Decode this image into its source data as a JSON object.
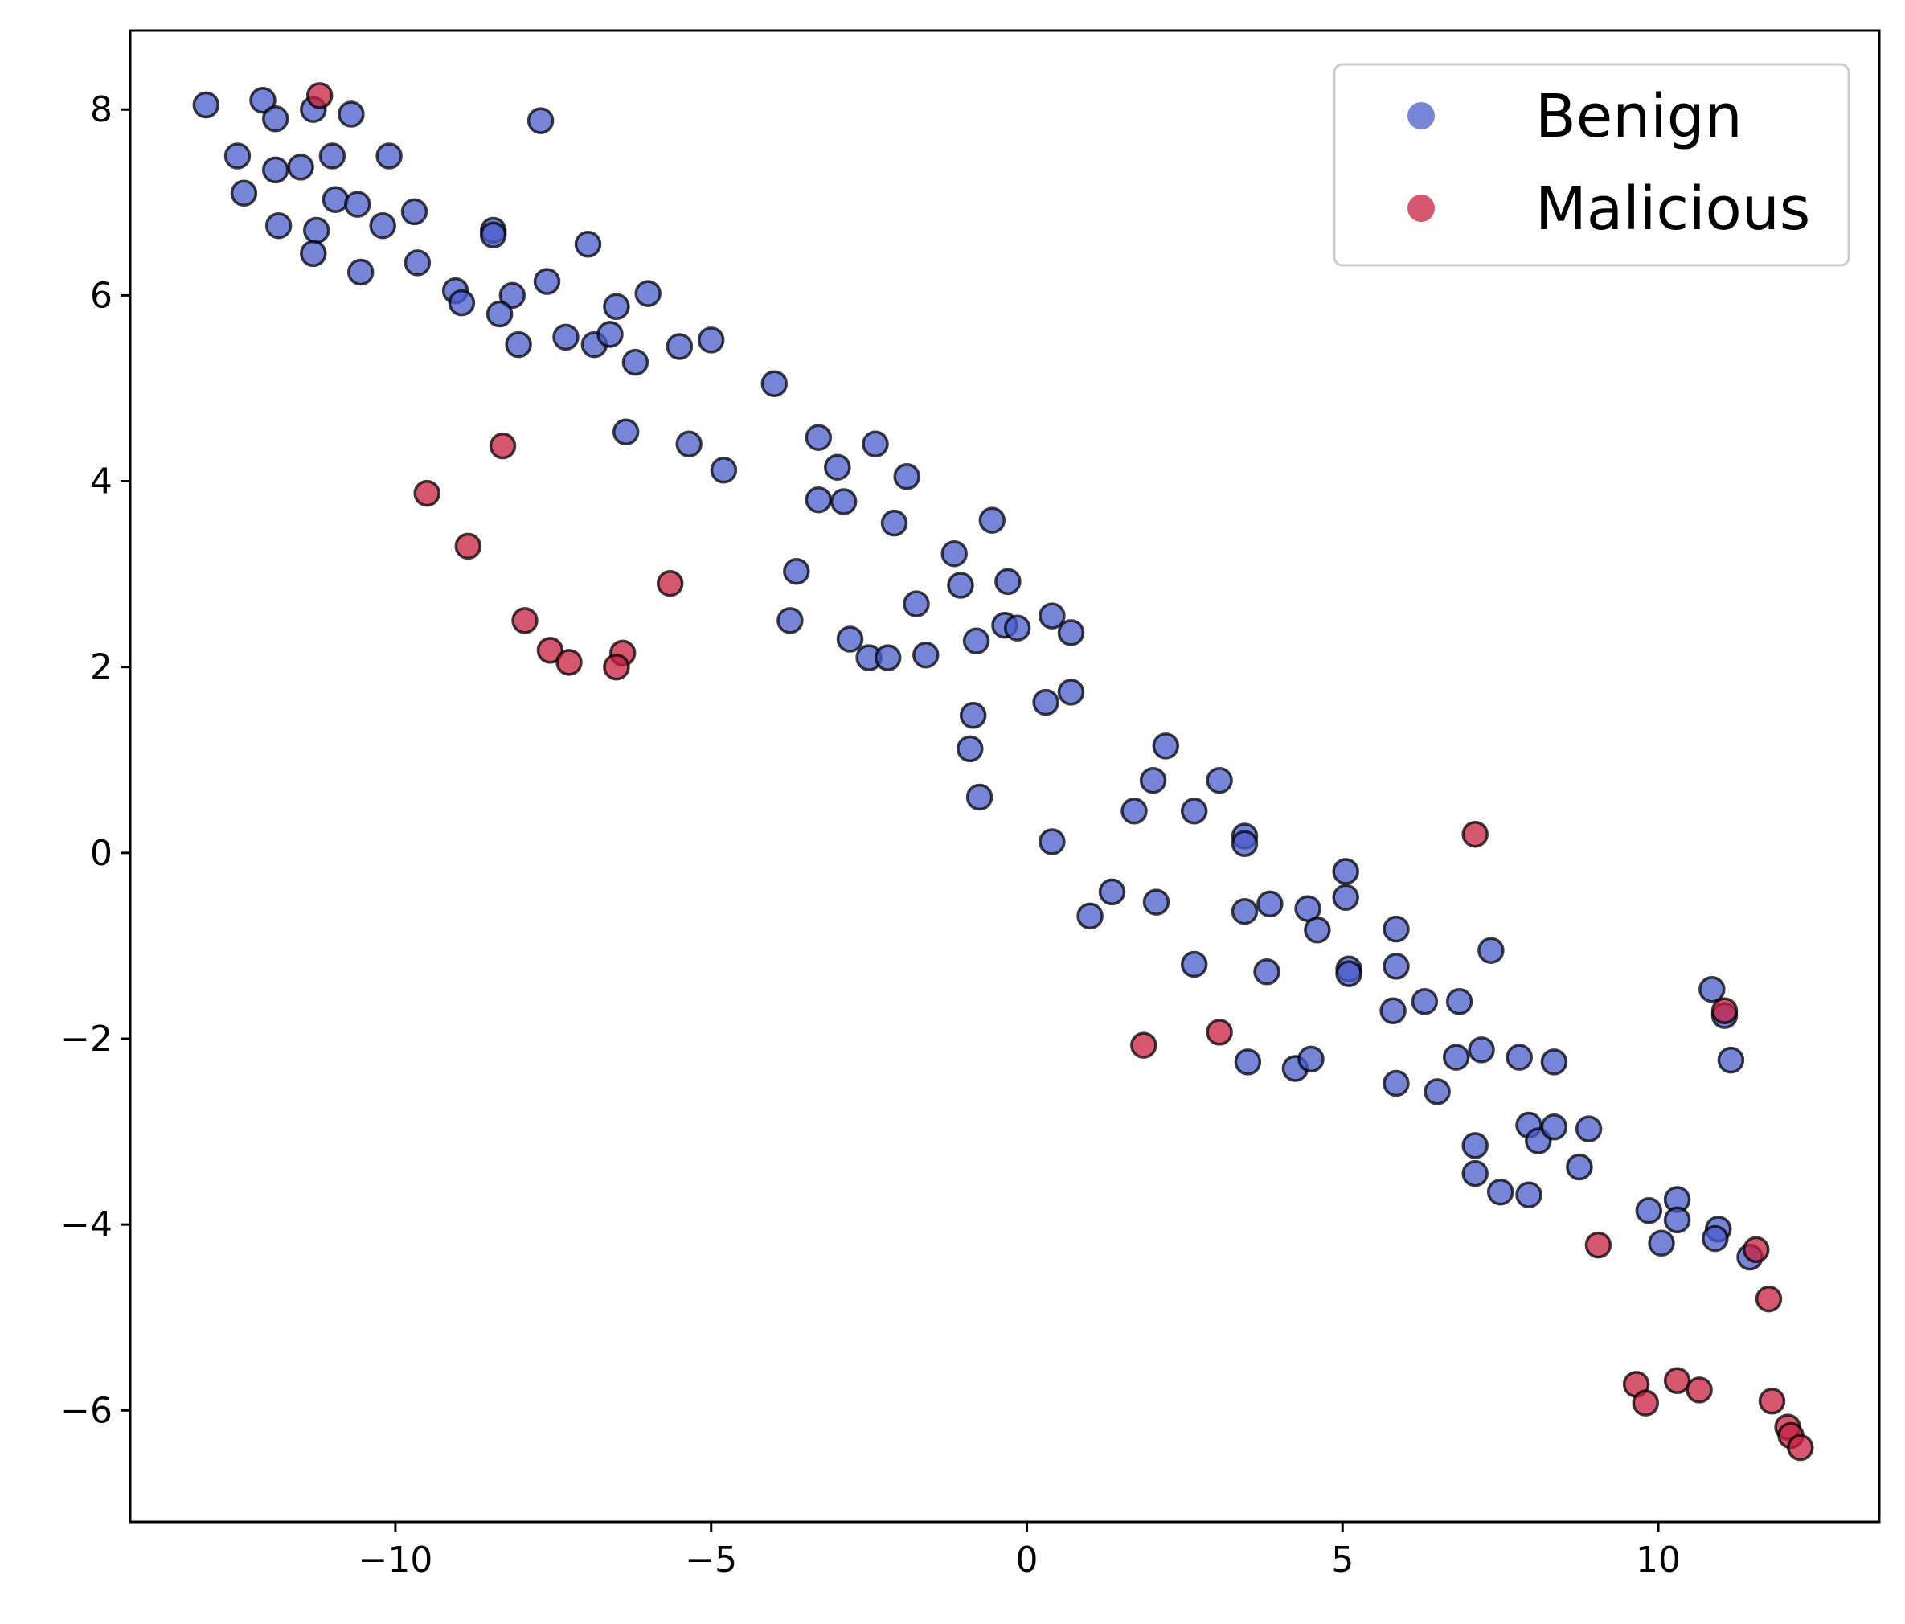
{
  "chart_data": {
    "type": "scatter",
    "title": "",
    "xlabel": "",
    "ylabel": "",
    "xlim": [
      -14.2,
      13.5
    ],
    "ylim": [
      -7.2,
      8.85
    ],
    "xticks": [
      -10,
      -5,
      0,
      5,
      10
    ],
    "yticks": [
      -6,
      -4,
      -2,
      0,
      2,
      4,
      6,
      8
    ],
    "xtick_labels": [
      "−10",
      "−5",
      "0",
      "5",
      "10"
    ],
    "ytick_labels": [
      "−6",
      "−4",
      "−2",
      "0",
      "2",
      "4",
      "6",
      "8"
    ],
    "grid": false,
    "legend_position": "top-right",
    "series": [
      {
        "name": "Benign",
        "color": "#4a5ccc",
        "points": [
          [
            -13.0,
            8.05
          ],
          [
            -12.1,
            8.1
          ],
          [
            -11.9,
            7.9
          ],
          [
            -11.3,
            8.0
          ],
          [
            -10.7,
            7.95
          ],
          [
            -7.7,
            7.88
          ],
          [
            -12.5,
            7.5
          ],
          [
            -12.4,
            7.1
          ],
          [
            -11.9,
            7.35
          ],
          [
            -11.5,
            7.38
          ],
          [
            -11.0,
            7.5
          ],
          [
            -10.1,
            7.5
          ],
          [
            -10.95,
            7.03
          ],
          [
            -10.6,
            6.98
          ],
          [
            -9.7,
            6.9
          ],
          [
            -11.85,
            6.75
          ],
          [
            -11.25,
            6.7
          ],
          [
            -10.2,
            6.75
          ],
          [
            -11.3,
            6.45
          ],
          [
            -10.55,
            6.25
          ],
          [
            -9.65,
            6.35
          ],
          [
            -8.45,
            6.7
          ],
          [
            -8.45,
            6.65
          ],
          [
            -6.95,
            6.55
          ],
          [
            -9.05,
            6.05
          ],
          [
            -8.95,
            5.92
          ],
          [
            -8.15,
            6.0
          ],
          [
            -7.6,
            6.15
          ],
          [
            -6.5,
            5.88
          ],
          [
            -6.0,
            6.02
          ],
          [
            -8.35,
            5.8
          ],
          [
            -8.05,
            5.47
          ],
          [
            -7.3,
            5.55
          ],
          [
            -6.85,
            5.47
          ],
          [
            -6.6,
            5.58
          ],
          [
            -6.2,
            5.28
          ],
          [
            -5.5,
            5.45
          ],
          [
            -5.0,
            5.52
          ],
          [
            -4.0,
            5.05
          ],
          [
            -6.35,
            4.53
          ],
          [
            -5.35,
            4.4
          ],
          [
            -4.8,
            4.12
          ],
          [
            -3.3,
            4.47
          ],
          [
            -2.4,
            4.4
          ],
          [
            -3.0,
            4.15
          ],
          [
            -1.9,
            4.05
          ],
          [
            -3.3,
            3.8
          ],
          [
            -2.9,
            3.78
          ],
          [
            -2.1,
            3.55
          ],
          [
            -0.55,
            3.58
          ],
          [
            -3.65,
            3.03
          ],
          [
            -1.15,
            3.22
          ],
          [
            -1.05,
            2.88
          ],
          [
            -0.3,
            2.92
          ],
          [
            -1.75,
            2.68
          ],
          [
            -3.75,
            2.5
          ],
          [
            -2.8,
            2.3
          ],
          [
            -2.5,
            2.1
          ],
          [
            -2.2,
            2.1
          ],
          [
            -1.6,
            2.13
          ],
          [
            -0.8,
            2.28
          ],
          [
            -0.35,
            2.45
          ],
          [
            -0.15,
            2.42
          ],
          [
            0.4,
            2.55
          ],
          [
            0.7,
            2.37
          ],
          [
            0.3,
            1.62
          ],
          [
            0.7,
            1.73
          ],
          [
            -0.85,
            1.48
          ],
          [
            -0.9,
            1.12
          ],
          [
            -0.75,
            0.6
          ],
          [
            2.2,
            1.15
          ],
          [
            2.0,
            0.78
          ],
          [
            3.05,
            0.78
          ],
          [
            1.7,
            0.45
          ],
          [
            2.65,
            0.45
          ],
          [
            3.45,
            0.18
          ],
          [
            3.45,
            0.1
          ],
          [
            0.4,
            0.12
          ],
          [
            1.0,
            -0.68
          ],
          [
            1.35,
            -0.42
          ],
          [
            2.05,
            -0.53
          ],
          [
            3.45,
            -0.63
          ],
          [
            3.85,
            -0.55
          ],
          [
            4.45,
            -0.6
          ],
          [
            5.05,
            -0.2
          ],
          [
            5.05,
            -0.48
          ],
          [
            4.6,
            -0.83
          ],
          [
            5.85,
            -0.82
          ],
          [
            7.35,
            -1.05
          ],
          [
            2.65,
            -1.2
          ],
          [
            3.8,
            -1.28
          ],
          [
            5.1,
            -1.25
          ],
          [
            5.1,
            -1.3
          ],
          [
            5.85,
            -1.22
          ],
          [
            5.8,
            -1.7
          ],
          [
            6.3,
            -1.6
          ],
          [
            6.85,
            -1.6
          ],
          [
            3.5,
            -2.25
          ],
          [
            4.25,
            -2.32
          ],
          [
            4.5,
            -2.22
          ],
          [
            5.85,
            -2.48
          ],
          [
            6.5,
            -2.57
          ],
          [
            6.8,
            -2.2
          ],
          [
            7.2,
            -2.12
          ],
          [
            7.8,
            -2.2
          ],
          [
            8.35,
            -2.25
          ],
          [
            10.85,
            -1.47
          ],
          [
            11.05,
            -1.75
          ],
          [
            11.15,
            -2.23
          ],
          [
            7.95,
            -2.93
          ],
          [
            8.1,
            -3.1
          ],
          [
            8.35,
            -2.95
          ],
          [
            8.9,
            -2.97
          ],
          [
            7.1,
            -3.15
          ],
          [
            7.1,
            -3.45
          ],
          [
            7.5,
            -3.65
          ],
          [
            7.95,
            -3.68
          ],
          [
            8.75,
            -3.38
          ],
          [
            9.85,
            -3.85
          ],
          [
            10.3,
            -3.73
          ],
          [
            10.3,
            -3.95
          ],
          [
            10.05,
            -4.2
          ],
          [
            10.95,
            -4.05
          ],
          [
            10.9,
            -4.15
          ],
          [
            11.45,
            -4.35
          ]
        ]
      },
      {
        "name": "Malicious",
        "color": "#c8203f",
        "points": [
          [
            -11.2,
            8.15
          ],
          [
            -9.5,
            3.87
          ],
          [
            -8.3,
            4.38
          ],
          [
            -8.85,
            3.3
          ],
          [
            -7.95,
            2.5
          ],
          [
            -7.55,
            2.18
          ],
          [
            -7.25,
            2.05
          ],
          [
            -6.4,
            2.15
          ],
          [
            -6.5,
            2.0
          ],
          [
            -5.65,
            2.9
          ],
          [
            1.85,
            -2.07
          ],
          [
            3.05,
            -1.93
          ],
          [
            7.1,
            0.2
          ],
          [
            11.05,
            -1.7
          ],
          [
            9.05,
            -4.22
          ],
          [
            11.55,
            -4.27
          ],
          [
            11.75,
            -4.8
          ],
          [
            9.65,
            -5.72
          ],
          [
            9.8,
            -5.92
          ],
          [
            10.3,
            -5.68
          ],
          [
            10.65,
            -5.78
          ],
          [
            11.8,
            -5.9
          ],
          [
            12.05,
            -6.18
          ],
          [
            12.1,
            -6.27
          ],
          [
            12.25,
            -6.4
          ]
        ]
      }
    ]
  }
}
